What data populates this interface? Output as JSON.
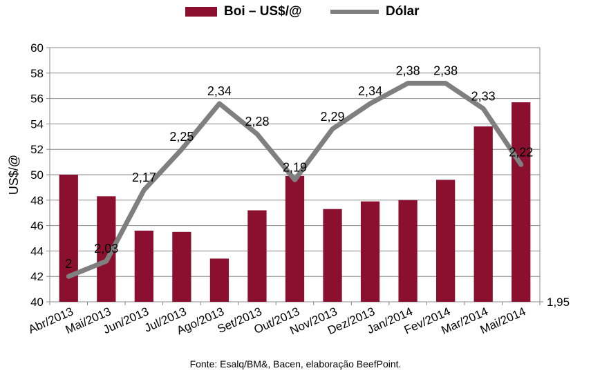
{
  "chart_data": {
    "type": "bar+line",
    "categories": [
      "Abr/2013",
      "Mai/2013",
      "Jun/2013",
      "Jul/2013",
      "Ago/2013",
      "Set/2013",
      "Out/2013",
      "Nov/2013",
      "Dez/2013",
      "Jan/2014",
      "Fev/2014",
      "Mar/2014",
      "Mai/2014"
    ],
    "series": [
      {
        "name": "Boi – US$/@",
        "type": "bar",
        "axis": "left",
        "color": "#8b1030",
        "values": [
          50.0,
          48.3,
          45.6,
          45.5,
          43.4,
          47.2,
          49.9,
          47.3,
          47.9,
          48.0,
          49.6,
          53.8,
          55.7
        ]
      },
      {
        "name": "Dólar",
        "type": "line",
        "axis": "right",
        "color": "#7f7f7f",
        "values": [
          2.0,
          2.03,
          2.17,
          2.25,
          2.34,
          2.28,
          2.19,
          2.29,
          2.34,
          2.38,
          2.38,
          2.33,
          2.22
        ],
        "labels": [
          "2",
          "2,03",
          "2,17",
          "2,25",
          "2,34",
          "2,28",
          "2,19",
          "2,29",
          "2,34",
          "2,38",
          "2,38",
          "2,33",
          "2,22"
        ]
      }
    ],
    "ylabel": "US$/@",
    "ylim": [
      40,
      60
    ],
    "yticks": [
      "40",
      "42",
      "44",
      "46",
      "48",
      "50",
      "52",
      "54",
      "56",
      "58",
      "60"
    ],
    "y2tick": "1,95",
    "grid": true,
    "legend": "top-center"
  },
  "legend": {
    "bar_label": "Boi – US$/@",
    "line_label": "Dólar"
  },
  "source": "Fonte: Esalq/BM&, Bacen, elaboração BeefPoint."
}
